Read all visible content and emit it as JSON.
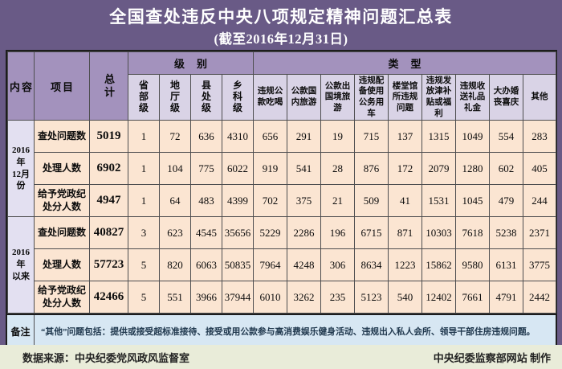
{
  "title": {
    "main": "全国查处违反中央八项规定精神问题汇总表",
    "sub": "(截至2016年12月31日)"
  },
  "table": {
    "header": {
      "content": "内容",
      "project": "项目",
      "total": "总计",
      "level_group": "级别",
      "type_group": "类型",
      "levels": [
        "省部级",
        "地厅级",
        "县处级",
        "乡科级"
      ],
      "types": [
        "违规公款吃喝",
        "公款国内旅游",
        "公款出国境旅游",
        "违规配备使用公务用车",
        "楼堂馆所违规问题",
        "违规发放津补贴或福利",
        "违规收送礼品礼金",
        "大办婚丧喜庆",
        "其他"
      ]
    },
    "sections": [
      {
        "label": "2016年\n12月份",
        "rows": [
          {
            "project": "查处问题数",
            "total": "5019",
            "levels": [
              "1",
              "72",
              "636",
              "4310"
            ],
            "types": [
              "656",
              "291",
              "19",
              "715",
              "137",
              "1315",
              "1049",
              "554",
              "283"
            ]
          },
          {
            "project": "处理人数",
            "total": "6902",
            "levels": [
              "1",
              "104",
              "775",
              "6022"
            ],
            "types": [
              "919",
              "541",
              "28",
              "876",
              "172",
              "2079",
              "1280",
              "602",
              "405"
            ]
          },
          {
            "project": "给予党政纪处分人数",
            "total": "4947",
            "levels": [
              "1",
              "64",
              "483",
              "4399"
            ],
            "types": [
              "702",
              "375",
              "21",
              "509",
              "41",
              "1531",
              "1045",
              "479",
              "244"
            ]
          }
        ]
      },
      {
        "label": "2016年\n以来",
        "rows": [
          {
            "project": "查处问题数",
            "total": "40827",
            "levels": [
              "3",
              "623",
              "4545",
              "35656"
            ],
            "types": [
              "5229",
              "2286",
              "196",
              "6715",
              "871",
              "10303",
              "7618",
              "5238",
              "2371"
            ]
          },
          {
            "project": "处理人数",
            "total": "57723",
            "levels": [
              "5",
              "820",
              "6063",
              "50835"
            ],
            "types": [
              "7964",
              "4248",
              "306",
              "8634",
              "1223",
              "15862",
              "9580",
              "6131",
              "3775"
            ]
          },
          {
            "project": "给予党政纪处分人数",
            "total": "42466",
            "levels": [
              "5",
              "551",
              "3966",
              "37944"
            ],
            "types": [
              "6010",
              "3262",
              "235",
              "5123",
              "540",
              "12402",
              "7661",
              "4791",
              "2442"
            ]
          }
        ]
      }
    ],
    "remark": {
      "label": "备注",
      "text": "“其他”问题包括：提供或接受超标准接待、接受或用公款参与高消费娱乐健身活动、违规出入私人会所、领导干部住房违规问题。"
    }
  },
  "footer": {
    "source": "数据来源：中央纪委党风政风监督室",
    "credit": "中央纪委监察部网站  制作"
  },
  "colors": {
    "page_background": "#695a86",
    "header_purple": "#a392bd",
    "subheader_lavender": "#d9d3e6",
    "section_lavender": "#e3e0f1",
    "data_peach": "#fbe5d2",
    "remark_blue": "#d7e7f3",
    "footer_olive": "#e9ecd9",
    "title_text": "#ffffff",
    "grid_border": "#4e4e50"
  },
  "chart_data": {
    "type": "table",
    "title": "全国查处违反中央八项规定精神问题汇总表（截至2016年12月31日）",
    "columns": [
      "内容",
      "项目",
      "总计",
      "省部级",
      "地厅级",
      "县处级",
      "乡科级",
      "违规公款吃喝",
      "公款国内旅游",
      "公款出国境旅游",
      "违规配备使用公务用车",
      "楼堂馆所违规问题",
      "违规发放津补贴或福利",
      "违规收送礼品礼金",
      "大办婚丧喜庆",
      "其他"
    ],
    "rows": [
      [
        "2016年12月份",
        "查处问题数",
        5019,
        1,
        72,
        636,
        4310,
        656,
        291,
        19,
        715,
        137,
        1315,
        1049,
        554,
        283
      ],
      [
        "2016年12月份",
        "处理人数",
        6902,
        1,
        104,
        775,
        6022,
        919,
        541,
        28,
        876,
        172,
        2079,
        1280,
        602,
        405
      ],
      [
        "2016年12月份",
        "给予党政纪处分人数",
        4947,
        1,
        64,
        483,
        4399,
        702,
        375,
        21,
        509,
        41,
        1531,
        1045,
        479,
        244
      ],
      [
        "2016年以来",
        "查处问题数",
        40827,
        3,
        623,
        4545,
        35656,
        5229,
        2286,
        196,
        6715,
        871,
        10303,
        7618,
        5238,
        2371
      ],
      [
        "2016年以来",
        "处理人数",
        57723,
        5,
        820,
        6063,
        50835,
        7964,
        4248,
        306,
        8634,
        1223,
        15862,
        9580,
        6131,
        3775
      ],
      [
        "2016年以来",
        "给予党政纪处分人数",
        42466,
        5,
        551,
        3966,
        37944,
        6010,
        3262,
        235,
        5123,
        540,
        12402,
        7661,
        4791,
        2442
      ]
    ]
  }
}
